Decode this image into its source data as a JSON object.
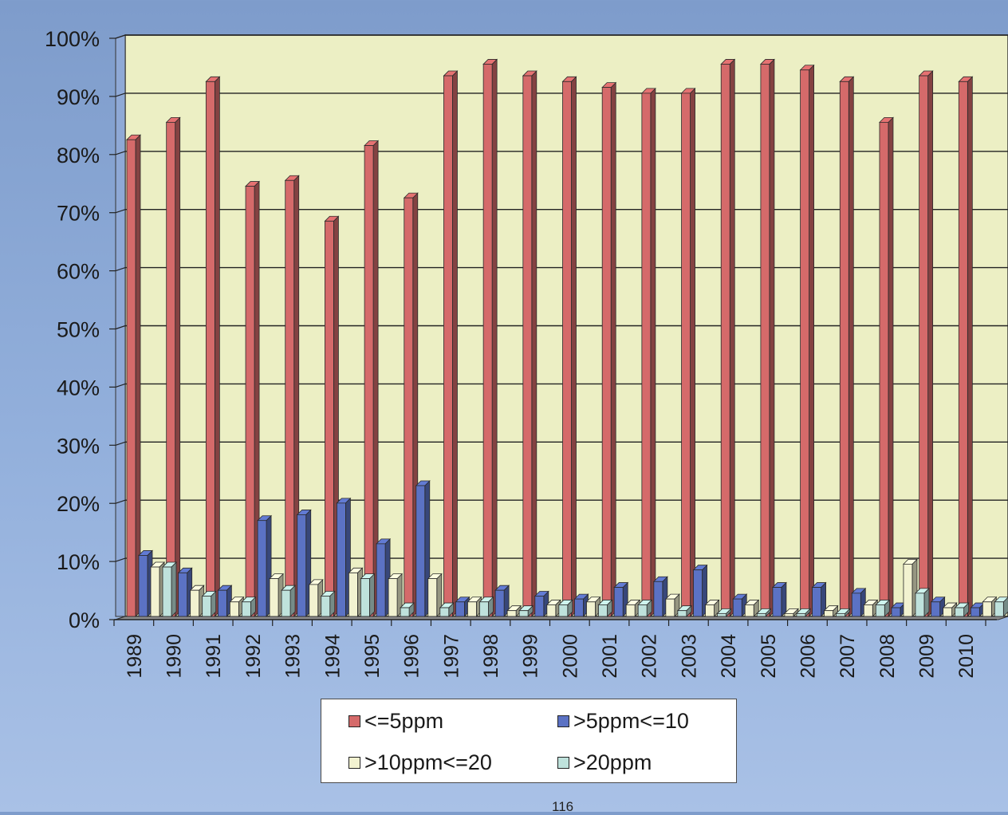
{
  "chart_data": {
    "type": "bar",
    "title": "",
    "xlabel": "",
    "ylabel": "",
    "ylim": [
      0,
      100
    ],
    "ytick_labels": [
      "0%",
      "10%",
      "20%",
      "30%",
      "40%",
      "50%",
      "60%",
      "70%",
      "80%",
      "90%",
      "100%"
    ],
    "categories": [
      "1989",
      "1990",
      "1991",
      "1992",
      "1993",
      "1994",
      "1995",
      "1996",
      "1997",
      "1998",
      "1999",
      "2000",
      "2001",
      "2002",
      "2003",
      "2004",
      "2005",
      "2006",
      "2007",
      "2008",
      "2009",
      "2010"
    ],
    "series": [
      {
        "name": "<=5ppm",
        "color": "#d56a6a",
        "values": [
          82,
          85,
          92,
          74,
          75,
          68,
          81,
          72,
          93,
          95,
          93,
          92,
          91,
          90,
          90,
          95,
          95,
          94,
          92,
          85,
          93,
          92
        ]
      },
      {
        "name": ">5ppm<=10",
        "color": "#5b72c4",
        "values": [
          10.5,
          7.5,
          4.5,
          16.5,
          17.5,
          19.5,
          12.5,
          22.5,
          2.5,
          4.5,
          3.5,
          3,
          5,
          6,
          8,
          3,
          5,
          5,
          4,
          1.5,
          2.5,
          1.5
        ]
      },
      {
        "name": ">10ppm<=20",
        "color": "#f2f2d0",
        "values": [
          8.5,
          4.5,
          2.5,
          6.5,
          5.5,
          7.5,
          6.5,
          6.5,
          2.5,
          1,
          2,
          2.5,
          2,
          3,
          2,
          2,
          0.5,
          1,
          2,
          9,
          1.5,
          2.5
        ]
      },
      {
        "name": ">20ppm",
        "color": "#bfe2dc",
        "values": [
          8.5,
          3.5,
          2.5,
          4.5,
          3.5,
          6.5,
          1.5,
          1.5,
          2.5,
          1,
          2,
          2,
          2,
          1,
          0.5,
          0.5,
          0.5,
          0.5,
          2,
          4,
          1.5,
          2.5
        ]
      }
    ],
    "grid": true,
    "legend_position": "bottom"
  },
  "legend": {
    "items": [
      {
        "label": "<=5ppm",
        "color": "#d56a6a"
      },
      {
        "label": ">5ppm<=10",
        "color": "#5b72c4"
      },
      {
        "label": ">10ppm<=20",
        "color": "#f2f2d0"
      },
      {
        "label": ">20ppm",
        "color": "#bfe2dc"
      }
    ]
  },
  "page_number": "116"
}
